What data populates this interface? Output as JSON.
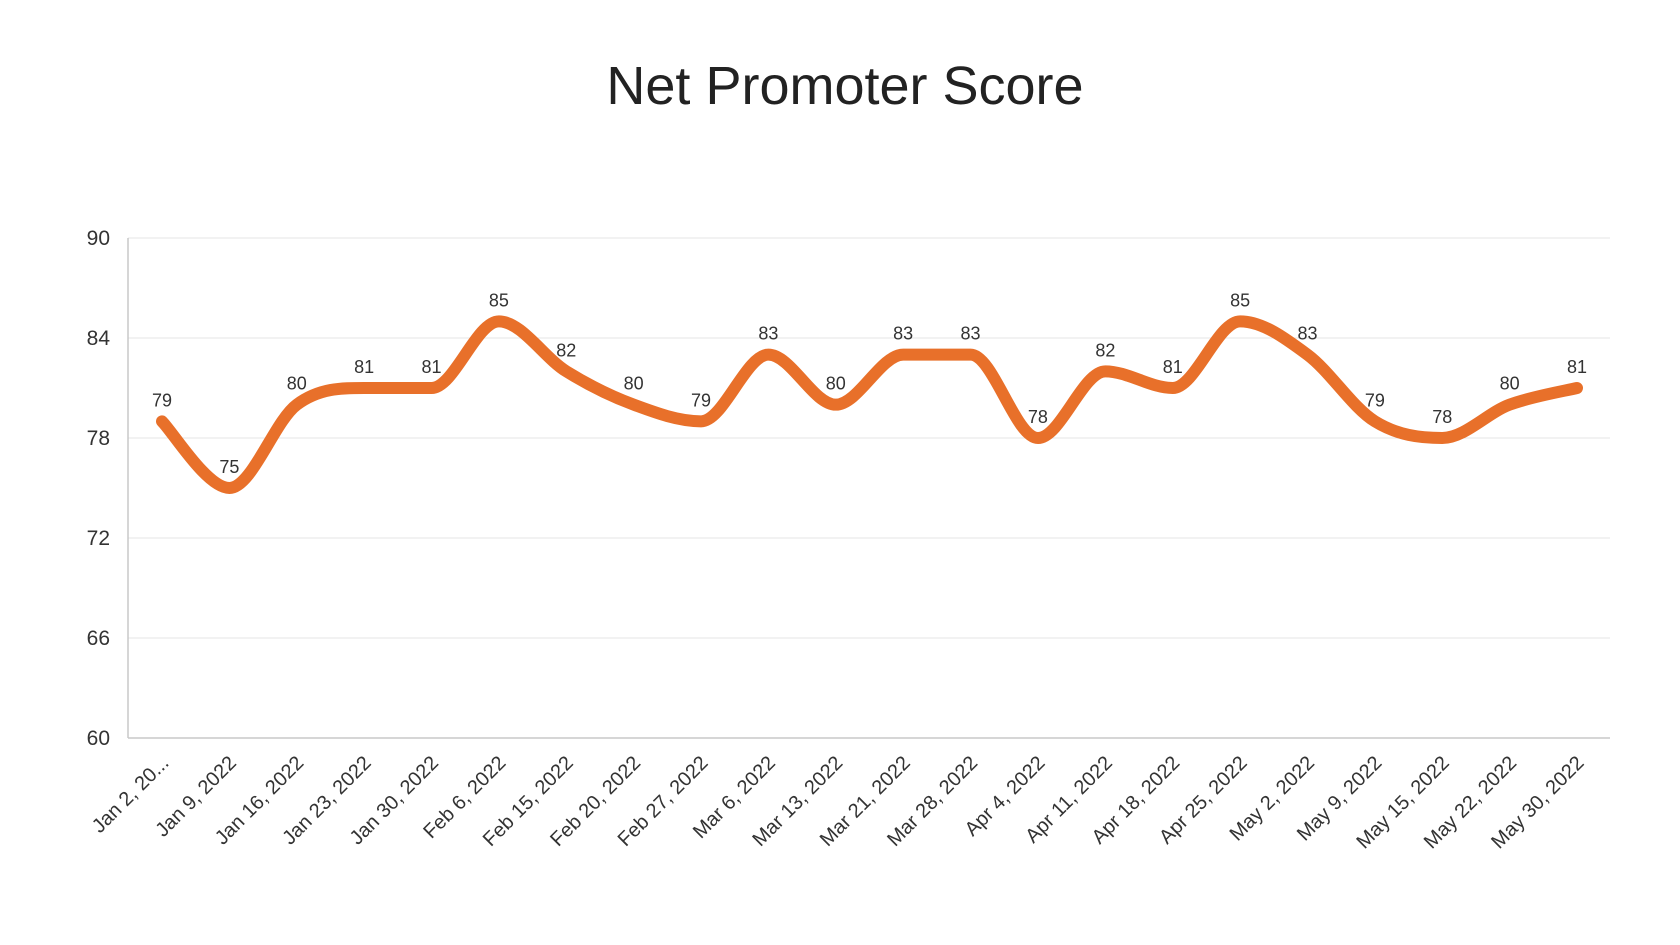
{
  "chart_data": {
    "type": "line",
    "title": "Net Promoter Score",
    "xlabel": "",
    "ylabel": "",
    "categories": [
      "Jan 2, 20...",
      "Jan 9, 2022",
      "Jan 16, 2022",
      "Jan 23, 2022",
      "Jan 30, 2022",
      "Feb 6, 2022",
      "Feb 15, 2022",
      "Feb 20, 2022",
      "Feb 27, 2022",
      "Mar 6, 2022",
      "Mar 13, 2022",
      "Mar 21, 2022",
      "Mar 28, 2022",
      "Apr 4, 2022",
      "Apr 11, 2022",
      "Apr 18, 2022",
      "Apr 25, 2022",
      "May 2, 2022",
      "May 9, 2022",
      "May 15, 2022",
      "May 22, 2022",
      "May 30, 2022"
    ],
    "series": [
      {
        "values": [
          79,
          75,
          80,
          81,
          81,
          85,
          82,
          80,
          79,
          83,
          80,
          83,
          83,
          78,
          82,
          81,
          85,
          83,
          79,
          78,
          80,
          81
        ],
        "color": "#E8702A"
      }
    ],
    "ylim": [
      60,
      90
    ],
    "yticks": [
      60,
      66,
      72,
      78,
      84,
      90
    ],
    "grid": true,
    "smooth": true,
    "data_labels": true,
    "legend": "none"
  }
}
